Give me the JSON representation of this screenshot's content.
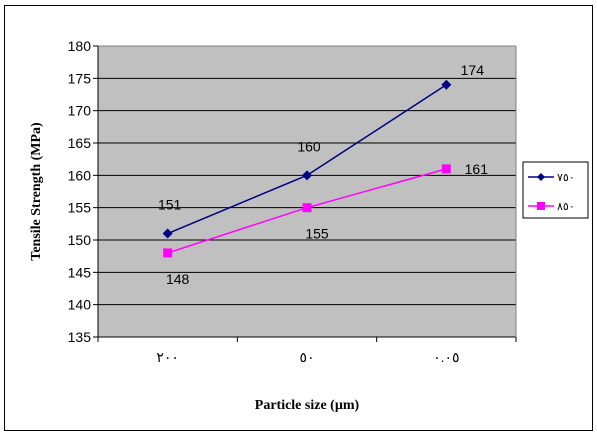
{
  "chart_data": {
    "type": "line",
    "title": "",
    "xlabel": "Particle size (µm)",
    "ylabel": "Tensile Strength (MPa)",
    "categories": [
      "٢٠٠",
      "٥٠",
      "٠.٠٥"
    ],
    "ylim": [
      135,
      180
    ],
    "ytick_step": 5,
    "grid": true,
    "plot_background": "#c0c0c0",
    "legend_position": "right",
    "series": [
      {
        "name": "٧٥٠",
        "values": [
          151,
          160,
          174
        ],
        "color": "#000080",
        "marker": "diamond"
      },
      {
        "name": "٨٥٠",
        "values": [
          148,
          155,
          161
        ],
        "color": "#ff00ff",
        "marker": "square"
      }
    ]
  }
}
